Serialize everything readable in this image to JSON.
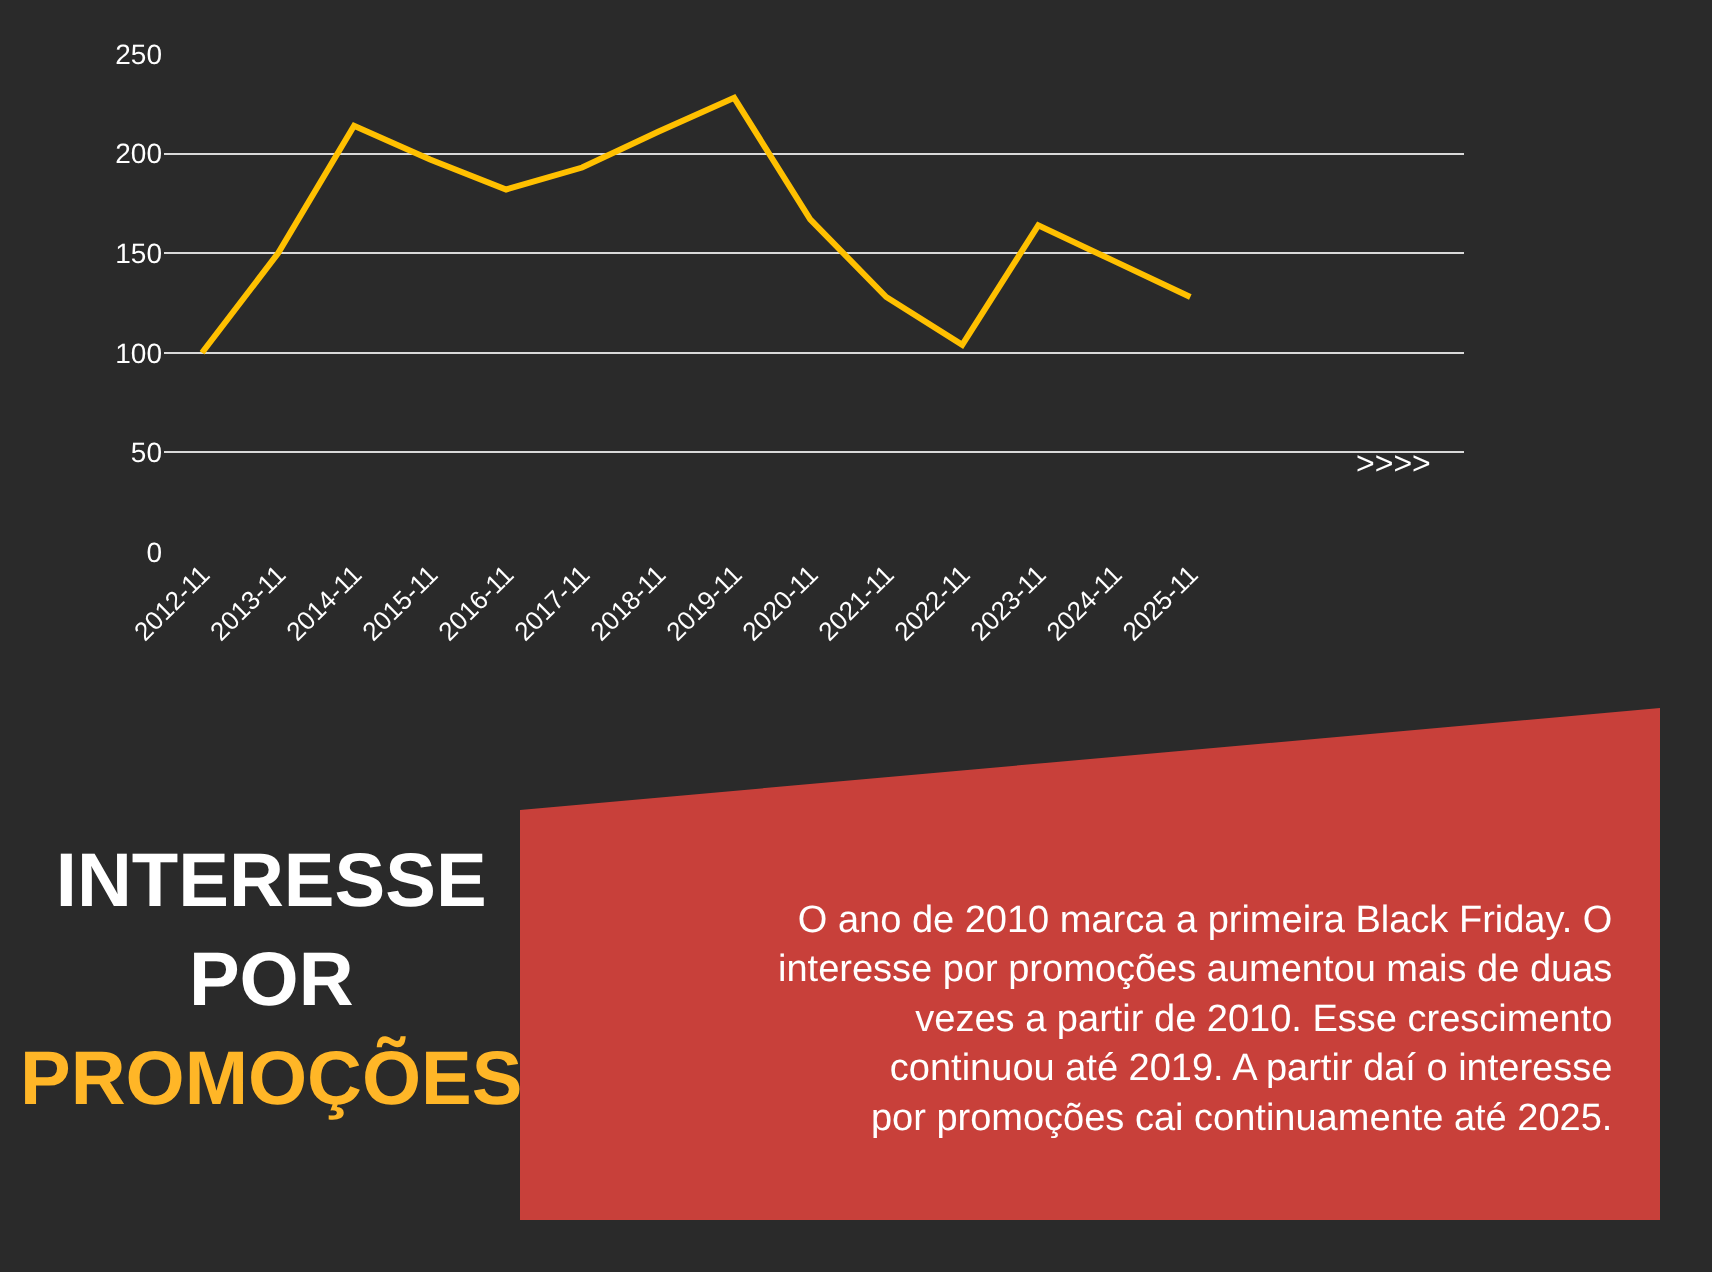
{
  "chart_data": {
    "type": "line",
    "title": "INTERESSE\nPOR\nPROMOÇÕES",
    "categories": [
      "2012-11",
      "2013-11",
      "2014-11",
      "2015-11",
      "2016-11",
      "2017-11",
      "2018-11",
      "2019-11",
      "2020-11",
      "2021-11",
      "2022-11",
      "2023-11",
      "2024-11",
      "2025-11"
    ],
    "series": [
      {
        "color": "#ffc000",
        "values": [
          100,
          150,
          214,
          197,
          182,
          193,
          211,
          228,
          167,
          128,
          104,
          164,
          146,
          128
        ]
      }
    ],
    "ylim": [
      0,
      250
    ],
    "yticks": [
      0,
      50,
      100,
      150,
      200,
      250
    ],
    "grid": "y",
    "marker": "none",
    "line_style": "solid",
    "annotations": [
      ">>>>",
      "O ano de 2010 marca a primeira Black Friday. O interesse por promoções aumentou mais de duas vezes a partir de 2010. Esse crescimento continuou até 2019. A partir daí o interesse por promoções cai continuamente até 2025."
    ]
  }
}
